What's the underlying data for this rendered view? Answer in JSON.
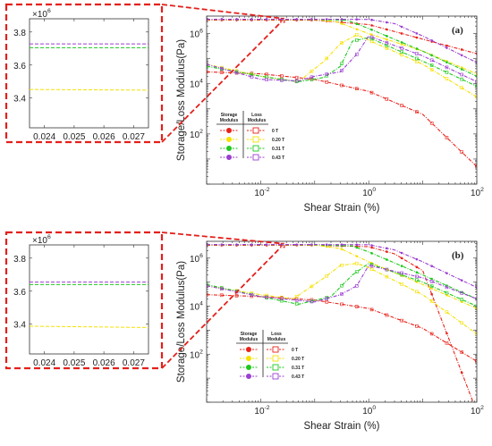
{
  "chart_data": [
    {
      "type": "line",
      "panel_label": "(a)",
      "xscale": "log",
      "yscale": "log",
      "xlim": [
        0.001,
        100
      ],
      "ylim": [
        1,
        5000000
      ],
      "xlabel": "Shear Strain (%)",
      "ylabel": "Storage/Loss Modulus(Pa)",
      "x_ticks": [
        {
          "value": 0.01,
          "base": "10",
          "exp": "-2"
        },
        {
          "value": 1,
          "base": "10",
          "exp": "0"
        },
        {
          "value": 100,
          "base": "10",
          "exp": "2"
        }
      ],
      "y_ticks": [
        {
          "value": 100,
          "base": "10",
          "exp": "2"
        },
        {
          "value": 10000,
          "base": "10",
          "exp": "4"
        },
        {
          "value": 1000000,
          "base": "10",
          "exp": "6"
        }
      ],
      "legend": {
        "header_storage": [
          "Storage",
          "Modulus"
        ],
        "header_loss": [
          "Loss",
          "Modulus"
        ],
        "fields": [
          "0 T",
          "0.20 T",
          "0.31 T",
          "0.43 T"
        ]
      },
      "zoom_box": {
        "x": [
          0.0235,
          0.0275
        ],
        "y": [
          2800000,
          4100000
        ]
      },
      "series": [
        {
          "field": "0 T",
          "kind": "storage",
          "color": "#e8221a",
          "x": [
            0.001,
            0.01,
            0.1,
            1,
            10,
            100
          ],
          "y": [
            3450000,
            3450000,
            3420000,
            2300000,
            600000,
            160000
          ]
        },
        {
          "field": "0.20 T",
          "kind": "storage",
          "color": "#f5e000",
          "x": [
            0.001,
            0.01,
            0.1,
            0.25,
            1,
            10,
            100
          ],
          "y": [
            3720000,
            3720000,
            3650000,
            3000000,
            1000000,
            200000,
            25000
          ]
        },
        {
          "field": "0.31 T",
          "kind": "storage",
          "color": "#1ec81e",
          "x": [
            0.001,
            0.01,
            0.1,
            0.4,
            1,
            10,
            100
          ],
          "y": [
            3720000,
            3720000,
            3700000,
            3400000,
            1600000,
            200000,
            20000
          ]
        },
        {
          "field": "0.43 T",
          "kind": "storage",
          "color": "#9b3fd2",
          "x": [
            0.001,
            0.01,
            0.1,
            1,
            3,
            10,
            100
          ],
          "y": [
            3760000,
            3760000,
            3760000,
            3700000,
            2500000,
            800000,
            70000
          ]
        },
        {
          "field": "0 T",
          "kind": "loss",
          "color": "#e8221a",
          "x": [
            0.001,
            0.01,
            0.1,
            1,
            10,
            100
          ],
          "y": [
            30000,
            25000,
            15000,
            5000,
            600,
            5
          ]
        },
        {
          "field": "0.20 T",
          "kind": "loss",
          "color": "#f5e000",
          "x": [
            0.001,
            0.01,
            0.05,
            0.15,
            0.3,
            0.6,
            1,
            10,
            100
          ],
          "y": [
            60000,
            20000,
            12000,
            80000,
            400000,
            900000,
            550000,
            60000,
            3000
          ]
        },
        {
          "field": "0.31 T",
          "kind": "loss",
          "color": "#1ec81e",
          "x": [
            0.001,
            0.01,
            0.05,
            0.15,
            0.3,
            0.5,
            1,
            10,
            100
          ],
          "y": [
            50000,
            20000,
            12000,
            18000,
            50000,
            500000,
            700000,
            80000,
            8000
          ]
        },
        {
          "field": "0.43 T",
          "kind": "loss",
          "color": "#9b3fd2",
          "x": [
            0.001,
            0.01,
            0.05,
            0.1,
            0.3,
            0.6,
            1,
            10,
            100
          ],
          "y": [
            60000,
            15000,
            13000,
            20000,
            30000,
            150000,
            800000,
            130000,
            12000
          ]
        }
      ]
    },
    {
      "type": "line",
      "panel_label": "(b)",
      "xscale": "log",
      "yscale": "log",
      "xlim": [
        0.001,
        100
      ],
      "ylim": [
        1,
        5000000
      ],
      "xlabel": "Shear Strain (%)",
      "ylabel": "Storage/Loss Modulus(Pa)",
      "x_ticks": [
        {
          "value": 0.01,
          "base": "10",
          "exp": "-2"
        },
        {
          "value": 1,
          "base": "10",
          "exp": "0"
        },
        {
          "value": 100,
          "base": "10",
          "exp": "2"
        }
      ],
      "y_ticks": [
        {
          "value": 100,
          "base": "10",
          "exp": "2"
        },
        {
          "value": 10000,
          "base": "10",
          "exp": "4"
        },
        {
          "value": 1000000,
          "base": "10",
          "exp": "6"
        }
      ],
      "legend": {
        "header_storage": [
          "Storage",
          "Modulus"
        ],
        "header_loss": [
          "Loss",
          "Modulus"
        ],
        "fields": [
          "0 T",
          "0.20 T",
          "0.31 T",
          "0.43 T"
        ]
      },
      "zoom_box": {
        "x": [
          0.0235,
          0.0275
        ],
        "y": [
          2800000,
          4100000
        ]
      },
      "series": [
        {
          "field": "0 T",
          "kind": "storage",
          "color": "#e8221a",
          "x": [
            0.001,
            0.01,
            0.1,
            1,
            3,
            10,
            100
          ],
          "y": [
            3400000,
            3400000,
            3400000,
            3000000,
            1500000,
            300000,
            0.4
          ]
        },
        {
          "field": "0.20 T",
          "kind": "storage",
          "color": "#f5e000",
          "x": [
            0.001,
            0.01,
            0.1,
            0.3,
            1,
            10,
            100
          ],
          "y": [
            3640000,
            3640000,
            3500000,
            2500000,
            700000,
            80000,
            8000
          ]
        },
        {
          "field": "0.31 T",
          "kind": "storage",
          "color": "#1ec81e",
          "x": [
            0.001,
            0.01,
            0.1,
            0.5,
            1,
            10,
            100
          ],
          "y": [
            3640000,
            3640000,
            3620000,
            3200000,
            1800000,
            200000,
            20000
          ]
        },
        {
          "field": "0.43 T",
          "kind": "storage",
          "color": "#9b3fd2",
          "x": [
            0.001,
            0.01,
            0.1,
            1,
            3,
            10,
            100
          ],
          "y": [
            3660000,
            3660000,
            3660000,
            3600000,
            2200000,
            700000,
            60000
          ]
        },
        {
          "field": "0 T",
          "kind": "loss",
          "color": "#e8221a",
          "x": [
            0.001,
            0.01,
            0.1,
            1,
            10,
            100
          ],
          "y": [
            30000,
            25000,
            18000,
            8000,
            1200,
            50
          ]
        },
        {
          "field": "0.20 T",
          "kind": "loss",
          "color": "#f5e000",
          "x": [
            0.001,
            0.01,
            0.04,
            0.15,
            0.3,
            0.6,
            1,
            10,
            100
          ],
          "y": [
            70000,
            30000,
            20000,
            150000,
            500000,
            600000,
            400000,
            30000,
            700
          ]
        },
        {
          "field": "0.31 T",
          "kind": "loss",
          "color": "#1ec81e",
          "x": [
            0.001,
            0.01,
            0.05,
            0.2,
            0.5,
            1,
            10,
            100
          ],
          "y": [
            80000,
            25000,
            12000,
            25000,
            200000,
            600000,
            100000,
            10000
          ]
        },
        {
          "field": "0.43 T",
          "kind": "loss",
          "color": "#9b3fd2",
          "x": [
            0.001,
            0.01,
            0.1,
            0.3,
            0.6,
            1,
            10,
            100
          ],
          "y": [
            70000,
            25000,
            15000,
            30000,
            70000,
            500000,
            150000,
            20000
          ]
        }
      ]
    },
    {
      "type": "line",
      "role": "zoom-inset-a",
      "xlim": [
        0.0235,
        0.0275
      ],
      "ylim": [
        3.22,
        3.88
      ],
      "y_multiplier": {
        "base": "10",
        "exp": "6"
      },
      "x_ticks": [
        "0.024",
        "0.025",
        "0.026",
        "0.027"
      ],
      "y_ticks": [
        "3.4",
        "3.6",
        "3.8"
      ],
      "series": [
        {
          "field": "0.43 T",
          "color": "#9b3fd2",
          "x": [
            0.0235,
            0.0275
          ],
          "y": [
            3.728,
            3.728
          ]
        },
        {
          "field": "0.31 T",
          "color": "#1ec81e",
          "x": [
            0.0235,
            0.0275
          ],
          "y": [
            3.705,
            3.705
          ]
        },
        {
          "field": "0.20 T",
          "color": "#f5e000",
          "x": [
            0.0235,
            0.0275
          ],
          "y": [
            3.452,
            3.448
          ]
        }
      ]
    },
    {
      "type": "line",
      "role": "zoom-inset-b",
      "xlim": [
        0.0235,
        0.0275
      ],
      "ylim": [
        3.22,
        3.88
      ],
      "y_multiplier": {
        "base": "10",
        "exp": "6"
      },
      "x_ticks": [
        "0.024",
        "0.025",
        "0.026",
        "0.027"
      ],
      "y_ticks": [
        "3.4",
        "3.6",
        "3.8"
      ],
      "series": [
        {
          "field": "0.43 T",
          "color": "#9b3fd2",
          "x": [
            0.0235,
            0.0275
          ],
          "y": [
            3.655,
            3.655
          ]
        },
        {
          "field": "0.31 T",
          "color": "#1ec81e",
          "x": [
            0.0235,
            0.0275
          ],
          "y": [
            3.64,
            3.64
          ]
        },
        {
          "field": "0.20 T",
          "color": "#f5e000",
          "x": [
            0.0235,
            0.0275
          ],
          "y": [
            3.388,
            3.38
          ]
        }
      ]
    }
  ]
}
